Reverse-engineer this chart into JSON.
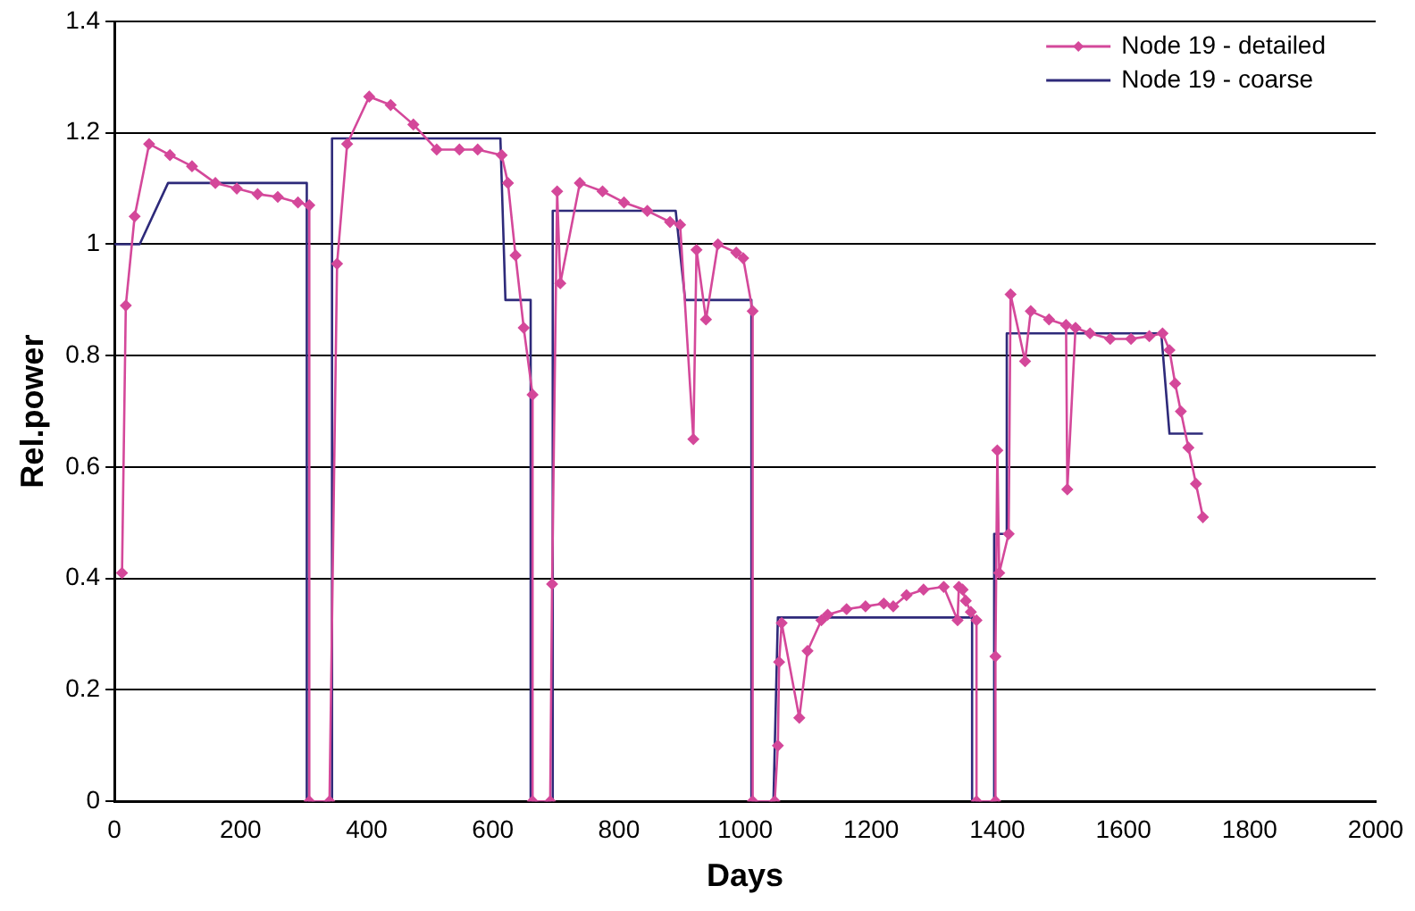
{
  "chart_data": {
    "type": "line",
    "xlabel": "Days",
    "ylabel": "Rel.power",
    "xlim": [
      0,
      2000
    ],
    "xticks": [
      0,
      200,
      400,
      600,
      800,
      1000,
      1200,
      1400,
      1600,
      1800,
      2000
    ],
    "ylim": [
      0,
      1.4
    ],
    "yticks": [
      0,
      0.2,
      0.4,
      0.6,
      0.8,
      1,
      1.2,
      1.4
    ],
    "grid": "y",
    "legend": "top right",
    "marker": "diamond",
    "line_style": "solid",
    "series": [
      {
        "name": "Node 19 - detailed",
        "color": "#d4489a",
        "x": [
          12,
          18,
          32,
          55,
          88,
          123,
          160,
          194,
          227,
          259,
          291,
          309,
          309,
          341,
          353,
          369,
          404,
          438,
          474,
          511,
          547,
          576,
          614,
          624,
          636,
          649,
          663,
          663,
          691,
          694,
          702,
          707,
          738,
          774,
          808,
          845,
          881,
          897,
          918,
          923,
          938,
          957,
          986,
          997,
          1012,
          1012,
          1047,
          1052,
          1054,
          1058,
          1086,
          1099,
          1121,
          1131,
          1161,
          1191,
          1220,
          1235,
          1256,
          1283,
          1315,
          1337,
          1339,
          1345,
          1350,
          1358,
          1367,
          1367,
          1397,
          1397,
          1400,
          1403,
          1418,
          1421,
          1444,
          1453,
          1482,
          1509,
          1511,
          1524,
          1547,
          1579,
          1612,
          1641,
          1662,
          1673,
          1682,
          1691,
          1703,
          1715,
          1726
        ],
        "values": [
          0.41,
          0.89,
          1.05,
          1.18,
          1.16,
          1.14,
          1.11,
          1.1,
          1.09,
          1.085,
          1.075,
          1.07,
          0,
          0,
          0.965,
          1.18,
          1.265,
          1.25,
          1.215,
          1.17,
          1.17,
          1.17,
          1.16,
          1.11,
          0.98,
          0.85,
          0.73,
          0,
          0,
          0.39,
          1.095,
          0.93,
          1.11,
          1.095,
          1.075,
          1.06,
          1.04,
          1.035,
          0.65,
          0.99,
          0.865,
          1,
          0.985,
          0.975,
          0.88,
          0,
          0,
          0.1,
          0.25,
          0.32,
          0.15,
          0.27,
          0.325,
          0.335,
          0.345,
          0.35,
          0.355,
          0.35,
          0.37,
          0.38,
          0.385,
          0.325,
          0.385,
          0.38,
          0.36,
          0.34,
          0.325,
          0,
          0,
          0.26,
          0.63,
          0.41,
          0.48,
          0.91,
          0.79,
          0.88,
          0.865,
          0.855,
          0.56,
          0.85,
          0.84,
          0.83,
          0.83,
          0.835,
          0.84,
          0.81,
          0.75,
          0.7,
          0.635,
          0.57,
          0.51
        ]
      },
      {
        "name": "Node 19 - coarse",
        "color": "#2e2a7a",
        "marker": "none",
        "x": [
          0,
          40,
          85,
          305,
          305,
          345,
          345,
          612,
          620,
          660,
          660,
          695,
          695,
          890,
          905,
          1010,
          1010,
          1045,
          1052,
          1360,
          1360,
          1395,
          1395,
          1415,
          1415,
          1660,
          1673,
          1726
        ],
        "values": [
          1,
          1,
          1.11,
          1.11,
          0,
          0,
          1.19,
          1.19,
          0.9,
          0.9,
          0,
          0,
          1.06,
          1.06,
          0.9,
          0.9,
          0,
          0,
          0.33,
          0.33,
          0,
          0,
          0.48,
          0.48,
          0.84,
          0.84,
          0.66,
          0.66
        ]
      }
    ]
  }
}
